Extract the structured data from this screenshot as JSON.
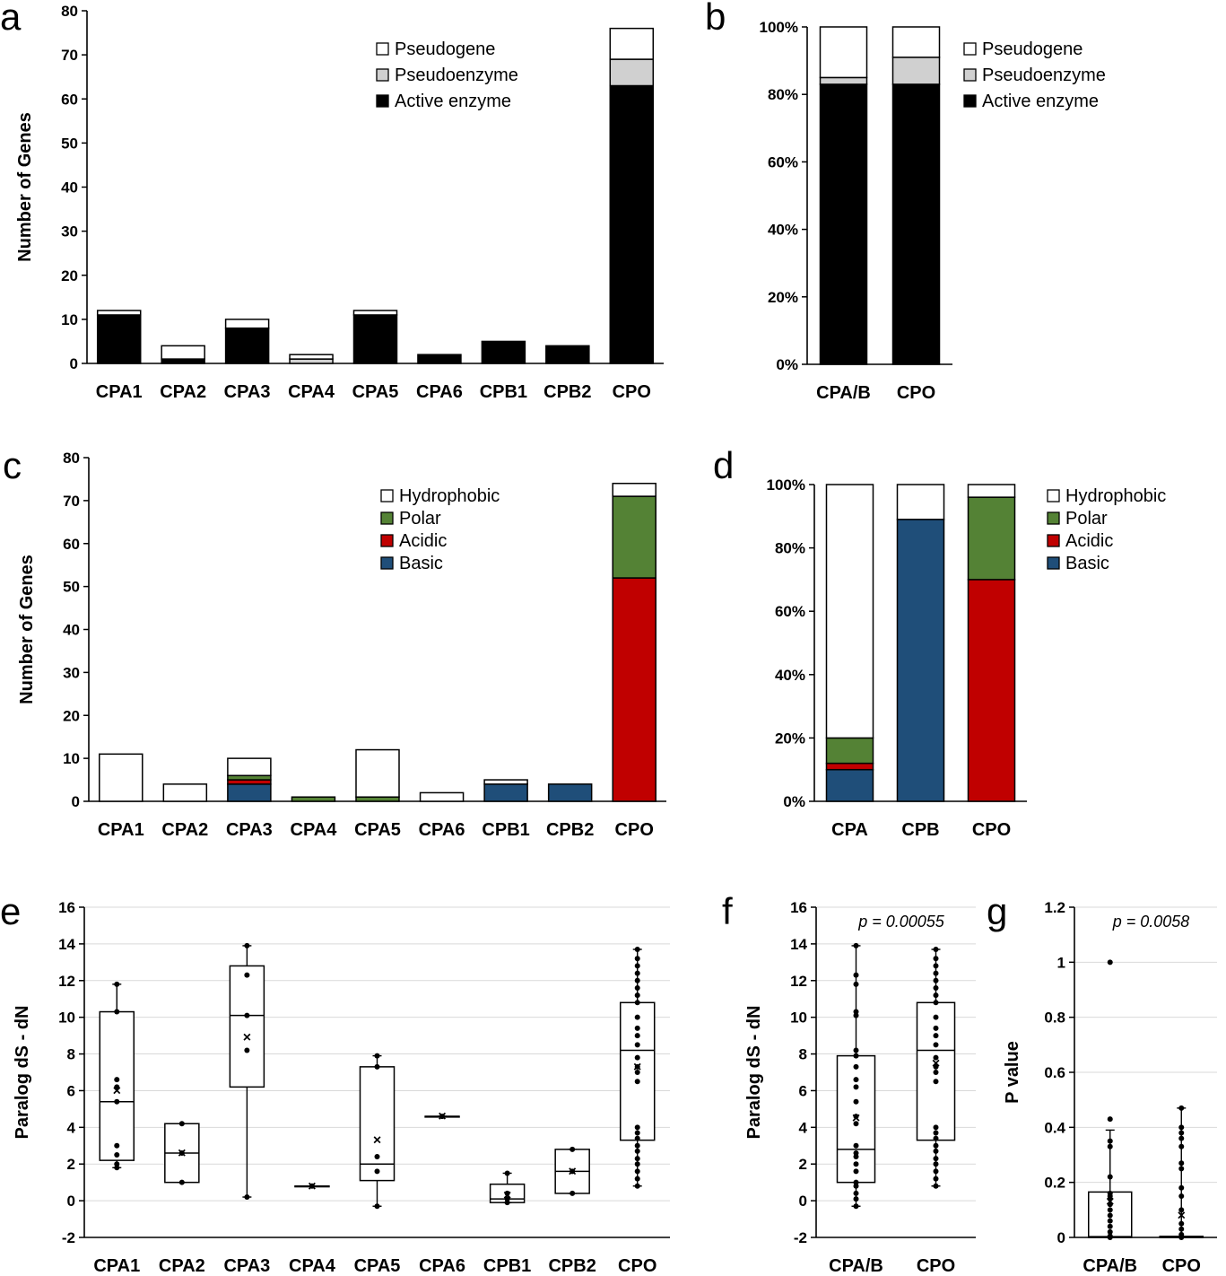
{
  "panel_letters": [
    "a",
    "b",
    "c",
    "d",
    "e",
    "f",
    "g"
  ],
  "chart_data": [
    {
      "panel": "a",
      "type": "bar",
      "stacked": true,
      "ylabel": "Number of Genes",
      "ylim": [
        0,
        80
      ],
      "yticks": [
        0,
        10,
        20,
        30,
        40,
        50,
        60,
        70,
        80
      ],
      "categories": [
        "CPA1",
        "CPA2",
        "CPA3",
        "CPA4",
        "CPA5",
        "CPA6",
        "CPB1",
        "CPB2",
        "CPO"
      ],
      "series": [
        {
          "name": "Active enzyme",
          "color": "#000000",
          "values": [
            11,
            1,
            8,
            0,
            11,
            2,
            5,
            4,
            63
          ]
        },
        {
          "name": "Pseudoenzyme",
          "color": "#d0d0d0",
          "values": [
            0,
            0,
            0,
            1,
            0,
            0,
            0,
            0,
            6
          ]
        },
        {
          "name": "Pseudogene",
          "color": "#ffffff",
          "values": [
            1,
            3,
            2,
            1,
            1,
            0,
            0,
            0,
            7
          ]
        }
      ],
      "legend": "top-right",
      "legend_order": [
        "Pseudogene",
        "Pseudoenzyme",
        "Active enzyme"
      ]
    },
    {
      "panel": "b",
      "type": "bar",
      "stacked": true,
      "percent": true,
      "ylim": [
        0,
        100
      ],
      "yticks": [
        "0%",
        "20%",
        "40%",
        "60%",
        "80%",
        "100%"
      ],
      "categories": [
        "CPA/B",
        "CPO"
      ],
      "series": [
        {
          "name": "Active enzyme",
          "color": "#000000",
          "values": [
            83,
            83
          ]
        },
        {
          "name": "Pseudoenzyme",
          "color": "#d0d0d0",
          "values": [
            2,
            8
          ]
        },
        {
          "name": "Pseudogene",
          "color": "#ffffff",
          "values": [
            15,
            9
          ]
        }
      ],
      "legend": "right",
      "legend_order": [
        "Pseudogene",
        "Pseudoenzyme",
        "Active enzyme"
      ]
    },
    {
      "panel": "c",
      "type": "bar",
      "stacked": true,
      "ylabel": "Number of Genes",
      "ylim": [
        0,
        80
      ],
      "yticks": [
        0,
        10,
        20,
        30,
        40,
        50,
        60,
        70,
        80
      ],
      "categories": [
        "CPA1",
        "CPA2",
        "CPA3",
        "CPA4",
        "CPA5",
        "CPA6",
        "CPB1",
        "CPB2",
        "CPO"
      ],
      "series": [
        {
          "name": "Basic",
          "color": "#1f4e79",
          "values": [
            0,
            0,
            4,
            0,
            0,
            0,
            4,
            4,
            0
          ]
        },
        {
          "name": "Acidic",
          "color": "#c00000",
          "values": [
            0,
            0,
            1,
            0,
            0,
            0,
            0,
            0,
            52
          ]
        },
        {
          "name": "Polar",
          "color": "#548235",
          "values": [
            0,
            0,
            1,
            1,
            1,
            0,
            0,
            0,
            19
          ]
        },
        {
          "name": "Hydrophobic",
          "color": "#ffffff",
          "values": [
            11,
            4,
            4,
            0,
            11,
            2,
            1,
            0,
            3
          ]
        }
      ],
      "legend": "top-right",
      "legend_order": [
        "Hydrophobic",
        "Polar",
        "Acidic",
        "Basic"
      ]
    },
    {
      "panel": "d",
      "type": "bar",
      "stacked": true,
      "percent": true,
      "ylim": [
        0,
        100
      ],
      "yticks": [
        "0%",
        "20%",
        "40%",
        "60%",
        "80%",
        "100%"
      ],
      "categories": [
        "CPA",
        "CPB",
        "CPO"
      ],
      "series": [
        {
          "name": "Basic",
          "color": "#1f4e79",
          "values": [
            10,
            89,
            0
          ]
        },
        {
          "name": "Acidic",
          "color": "#c00000",
          "values": [
            2,
            0,
            70
          ]
        },
        {
          "name": "Polar",
          "color": "#548235",
          "values": [
            8,
            0,
            26
          ]
        },
        {
          "name": "Hydrophobic",
          "color": "#ffffff",
          "values": [
            80,
            11,
            4
          ]
        }
      ],
      "legend": "right",
      "legend_order": [
        "Hydrophobic",
        "Polar",
        "Acidic",
        "Basic"
      ]
    },
    {
      "panel": "e",
      "type": "box",
      "ylabel": "Paralog dS - dN",
      "ylim": [
        -2,
        16
      ],
      "yticks": [
        -2,
        0,
        2,
        4,
        6,
        8,
        10,
        12,
        14,
        16
      ],
      "grid": true,
      "categories": [
        "CPA1",
        "CPA2",
        "CPA3",
        "CPA4",
        "CPA5",
        "CPA6",
        "CPB1",
        "CPB2",
        "CPO"
      ],
      "boxes": [
        {
          "min": 1.8,
          "q1": 2.2,
          "median": 5.4,
          "q3": 10.3,
          "max": 11.8,
          "mean": 6.0,
          "points": [
            1.8,
            2.0,
            2.5,
            3.0,
            5.4,
            6.2,
            6.6,
            10.3,
            11.8
          ]
        },
        {
          "min": 1.0,
          "q1": 1.0,
          "median": 2.6,
          "q3": 4.2,
          "max": 4.2,
          "mean": 2.6,
          "points": [
            1.0,
            2.6,
            4.2
          ]
        },
        {
          "min": 0.2,
          "q1": 6.2,
          "median": 10.1,
          "q3": 12.8,
          "max": 13.9,
          "mean": 8.9,
          "points": [
            0.2,
            8.2,
            10.1,
            12.3,
            13.9
          ]
        },
        {
          "min": 0.8,
          "q1": 0.8,
          "median": 0.8,
          "q3": 0.8,
          "max": 0.8,
          "mean": 0.8,
          "points": [
            0.8
          ]
        },
        {
          "min": -0.3,
          "q1": 1.1,
          "median": 2.0,
          "q3": 7.3,
          "max": 7.9,
          "mean": 3.3,
          "points": [
            -0.3,
            1.6,
            2.4,
            7.3,
            7.9
          ]
        },
        {
          "min": 4.6,
          "q1": 4.6,
          "median": 4.6,
          "q3": 4.6,
          "max": 4.6,
          "mean": 4.6,
          "points": [
            4.6
          ]
        },
        {
          "min": -0.1,
          "q1": -0.1,
          "median": 0.1,
          "q3": 0.9,
          "max": 1.5,
          "mean": 0.3,
          "points": [
            -0.1,
            0.1,
            0.4,
            1.5
          ]
        },
        {
          "min": 0.4,
          "q1": 0.4,
          "median": 1.6,
          "q3": 2.8,
          "max": 2.8,
          "mean": 1.6,
          "points": [
            0.4,
            1.6,
            2.8
          ]
        },
        {
          "min": 0.8,
          "q1": 3.3,
          "median": 8.2,
          "q3": 10.8,
          "max": 13.7,
          "mean": 7.3,
          "points": [
            0.8,
            1.2,
            1.6,
            2.0,
            2.3,
            2.7,
            3.0,
            3.4,
            3.7,
            4.0,
            6.5,
            7.0,
            7.3,
            7.8,
            8.5,
            9.0,
            9.4,
            10.0,
            10.8,
            11.2,
            11.6,
            12.0,
            12.4,
            12.8,
            13.2,
            13.7
          ]
        }
      ]
    },
    {
      "panel": "f",
      "type": "box",
      "ylabel": "Paralog dS - dN",
      "ylim": [
        -2,
        16
      ],
      "yticks": [
        -2,
        0,
        2,
        4,
        6,
        8,
        10,
        12,
        14,
        16
      ],
      "grid": true,
      "annotation": "p = 0.00055",
      "categories": [
        "CPA/B",
        "CPO"
      ],
      "boxes": [
        {
          "min": -0.3,
          "q1": 1.0,
          "median": 2.8,
          "q3": 7.9,
          "max": 13.9,
          "mean": 4.5,
          "points": [
            -0.3,
            0.1,
            0.4,
            0.8,
            1.0,
            1.6,
            2.0,
            2.4,
            2.6,
            3.0,
            4.2,
            4.6,
            5.4,
            6.2,
            6.6,
            7.3,
            7.9,
            8.2,
            10.1,
            10.3,
            11.8,
            12.3,
            13.9
          ]
        },
        {
          "min": 0.8,
          "q1": 3.3,
          "median": 8.2,
          "q3": 10.8,
          "max": 13.7,
          "mean": 7.5,
          "points": [
            0.8,
            1.2,
            1.6,
            2.0,
            2.3,
            2.7,
            3.0,
            3.4,
            3.7,
            4.0,
            6.5,
            7.0,
            7.3,
            7.8,
            8.5,
            9.0,
            9.4,
            10.0,
            10.8,
            11.2,
            11.6,
            12.0,
            12.4,
            12.8,
            13.2,
            13.7
          ]
        }
      ]
    },
    {
      "panel": "g",
      "type": "box",
      "ylabel": "P value",
      "ylim": [
        0,
        1.2
      ],
      "yticks": [
        0,
        0.2,
        0.4,
        0.6,
        0.8,
        1,
        1.2
      ],
      "grid": true,
      "annotation": "p = 0.0058",
      "categories": [
        "CPA/B",
        "CPO"
      ],
      "boxes": [
        {
          "min": 0,
          "q1": 0,
          "median": 0.003,
          "q3": 0.165,
          "max": 0.39,
          "mean": 0.13,
          "points": [
            0.0,
            0.005,
            0.02,
            0.04,
            0.06,
            0.08,
            0.1,
            0.12,
            0.14,
            0.15,
            0.16,
            0.22,
            0.33,
            0.35,
            0.43,
            1.0
          ]
        },
        {
          "min": 0,
          "q1": 0,
          "median": 0,
          "q3": 0.004,
          "max": 0.47,
          "mean": 0.08,
          "points": [
            0.0,
            0.01,
            0.03,
            0.05,
            0.1,
            0.15,
            0.18,
            0.25,
            0.27,
            0.33,
            0.36,
            0.38,
            0.4,
            0.47
          ]
        }
      ]
    }
  ]
}
